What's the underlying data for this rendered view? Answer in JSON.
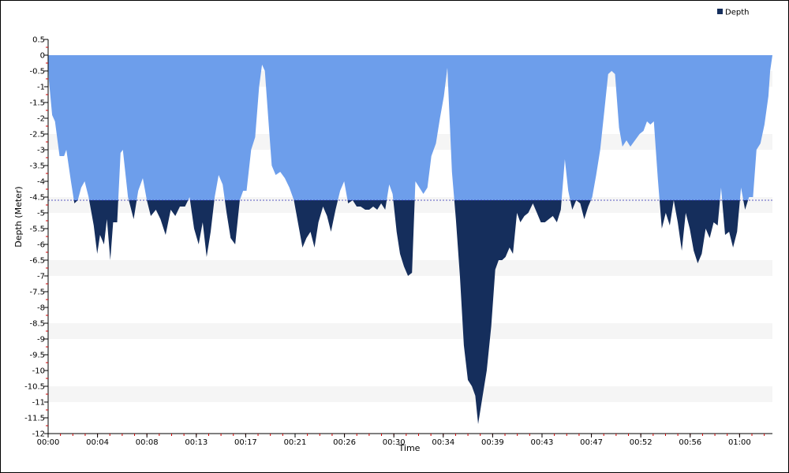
{
  "chart_data": {
    "type": "area",
    "xlabel": "Time",
    "ylabel": "Depth (Meter)",
    "legend": {
      "label": "Depth",
      "position": "top-right"
    },
    "ylim": [
      -12,
      0.5
    ],
    "xlim_minutes": [
      0,
      63.5
    ],
    "y_ticks": [
      0.5,
      0,
      -0.5,
      -1,
      -1.5,
      -2,
      -2.5,
      -3,
      -3.5,
      -4,
      -4.5,
      -5,
      -5.5,
      -6,
      -6.5,
      -7,
      -7.5,
      -8,
      -8.5,
      -9,
      -9.5,
      -10,
      -10.5,
      -11,
      -11.5,
      -12
    ],
    "y_tick_labels": [
      "0.5",
      "0",
      "-0.5",
      "-1",
      "-1.5",
      "-2",
      "-2.5",
      "-3",
      "-3.5",
      "-4",
      "-4.5",
      "-5",
      "-5.5",
      "-6",
      "-6.5",
      "-7",
      "-7.5",
      "-8",
      "-8.5",
      "-9",
      "-9.5",
      "-10",
      "-10.5",
      "-11",
      "-11.5",
      "-12"
    ],
    "x_ticks": [
      {
        "minute": 0,
        "label": "00:00"
      },
      {
        "minute": 4.33,
        "label": "00:04"
      },
      {
        "minute": 8.66,
        "label": "00:08"
      },
      {
        "minute": 12.99,
        "label": "00:13"
      },
      {
        "minute": 17.32,
        "label": "00:17"
      },
      {
        "minute": 21.65,
        "label": "00:21"
      },
      {
        "minute": 25.98,
        "label": "00:26"
      },
      {
        "minute": 30.31,
        "label": "00:30"
      },
      {
        "minute": 34.64,
        "label": "00:34"
      },
      {
        "minute": 38.97,
        "label": "00:39"
      },
      {
        "minute": 43.3,
        "label": "00:43"
      },
      {
        "minute": 47.63,
        "label": "00:47"
      },
      {
        "minute": 51.96,
        "label": "00:52"
      },
      {
        "minute": 56.29,
        "label": "00:56"
      },
      {
        "minute": 60.62,
        "label": "01:00"
      }
    ],
    "threshold_depth": -4.6,
    "colors": {
      "shallow_fill": "#6d9eeb",
      "deep_fill": "#152e5c",
      "threshold_line": "#2a2ab0",
      "band_alt": "#f5f5f5"
    },
    "series": [
      {
        "name": "Depth",
        "points": [
          [
            0,
            0
          ],
          [
            0.07,
            -0.8
          ],
          [
            0.35,
            -1.9
          ],
          [
            0.6,
            -2.1
          ],
          [
            1.0,
            -3.2
          ],
          [
            1.4,
            -3.2
          ],
          [
            1.6,
            -3.0
          ],
          [
            2.0,
            -4.0
          ],
          [
            2.3,
            -4.7
          ],
          [
            2.6,
            -4.6
          ],
          [
            2.9,
            -4.2
          ],
          [
            3.2,
            -4.0
          ],
          [
            3.55,
            -4.5
          ],
          [
            4.0,
            -5.4
          ],
          [
            4.3,
            -6.3
          ],
          [
            4.55,
            -5.7
          ],
          [
            4.9,
            -6.0
          ],
          [
            5.15,
            -5.2
          ],
          [
            5.45,
            -6.5
          ],
          [
            5.7,
            -5.3
          ],
          [
            6.05,
            -5.3
          ],
          [
            6.35,
            -3.1
          ],
          [
            6.55,
            -3.0
          ],
          [
            7.0,
            -4.5
          ],
          [
            7.5,
            -5.2
          ],
          [
            7.9,
            -4.3
          ],
          [
            8.3,
            -3.9
          ],
          [
            8.65,
            -4.6
          ],
          [
            9.0,
            -5.1
          ],
          [
            9.45,
            -4.9
          ],
          [
            9.85,
            -5.2
          ],
          [
            10.3,
            -5.7
          ],
          [
            10.75,
            -4.9
          ],
          [
            11.15,
            -5.1
          ],
          [
            11.55,
            -4.8
          ],
          [
            12.0,
            -4.8
          ],
          [
            12.4,
            -4.5
          ],
          [
            12.8,
            -5.5
          ],
          [
            13.2,
            -6.0
          ],
          [
            13.55,
            -5.3
          ],
          [
            13.9,
            -6.4
          ],
          [
            14.25,
            -5.6
          ],
          [
            14.6,
            -4.5
          ],
          [
            14.95,
            -3.8
          ],
          [
            15.3,
            -4.1
          ],
          [
            15.65,
            -5.0
          ],
          [
            16.0,
            -5.8
          ],
          [
            16.4,
            -6.0
          ],
          [
            16.8,
            -4.6
          ],
          [
            17.1,
            -4.3
          ],
          [
            17.4,
            -4.3
          ],
          [
            17.8,
            -3.0
          ],
          [
            18.15,
            -2.6
          ],
          [
            18.5,
            -1.0
          ],
          [
            18.75,
            -0.3
          ],
          [
            19.0,
            -0.5
          ],
          [
            19.3,
            -2.0
          ],
          [
            19.6,
            -3.5
          ],
          [
            19.95,
            -3.8
          ],
          [
            20.35,
            -3.7
          ],
          [
            20.75,
            -3.9
          ],
          [
            21.15,
            -4.2
          ],
          [
            21.55,
            -4.6
          ],
          [
            21.95,
            -5.4
          ],
          [
            22.3,
            -6.1
          ],
          [
            22.65,
            -5.8
          ],
          [
            23.0,
            -5.6
          ],
          [
            23.35,
            -6.1
          ],
          [
            23.7,
            -5.3
          ],
          [
            24.1,
            -4.8
          ],
          [
            24.45,
            -5.1
          ],
          [
            24.8,
            -5.6
          ],
          [
            25.2,
            -4.9
          ],
          [
            25.6,
            -4.3
          ],
          [
            25.95,
            -4.0
          ],
          [
            26.3,
            -4.7
          ],
          [
            26.7,
            -4.6
          ],
          [
            27.05,
            -4.8
          ],
          [
            27.4,
            -4.8
          ],
          [
            27.8,
            -4.9
          ],
          [
            28.15,
            -4.9
          ],
          [
            28.5,
            -4.8
          ],
          [
            28.85,
            -4.9
          ],
          [
            29.2,
            -4.7
          ],
          [
            29.55,
            -4.9
          ],
          [
            29.9,
            -4.1
          ],
          [
            30.2,
            -4.4
          ],
          [
            30.55,
            -5.6
          ],
          [
            30.85,
            -6.3
          ],
          [
            31.2,
            -6.7
          ],
          [
            31.55,
            -7.0
          ],
          [
            31.9,
            -6.9
          ],
          [
            32.2,
            -4.0
          ],
          [
            32.55,
            -4.2
          ],
          [
            32.9,
            -4.4
          ],
          [
            33.25,
            -4.2
          ],
          [
            33.6,
            -3.2
          ],
          [
            34.0,
            -2.8
          ],
          [
            34.35,
            -2.0
          ],
          [
            34.7,
            -1.3
          ],
          [
            35.0,
            -0.4
          ],
          [
            35.4,
            -3.7
          ],
          [
            35.75,
            -5.2
          ],
          [
            36.1,
            -7.0
          ],
          [
            36.45,
            -9.2
          ],
          [
            36.8,
            -10.3
          ],
          [
            37.15,
            -10.5
          ],
          [
            37.45,
            -10.8
          ],
          [
            37.7,
            -11.7
          ],
          [
            38.05,
            -10.9
          ],
          [
            38.45,
            -10.0
          ],
          [
            38.85,
            -8.6
          ],
          [
            39.2,
            -6.8
          ],
          [
            39.5,
            -6.5
          ],
          [
            39.8,
            -6.5
          ],
          [
            40.1,
            -6.4
          ],
          [
            40.45,
            -6.1
          ],
          [
            40.75,
            -6.3
          ],
          [
            41.1,
            -5.0
          ],
          [
            41.4,
            -5.3
          ],
          [
            41.75,
            -5.1
          ],
          [
            42.1,
            -5.0
          ],
          [
            42.5,
            -4.7
          ],
          [
            42.85,
            -5.0
          ],
          [
            43.2,
            -5.3
          ],
          [
            43.55,
            -5.3
          ],
          [
            43.9,
            -5.2
          ],
          [
            44.25,
            -5.1
          ],
          [
            44.6,
            -5.3
          ],
          [
            44.95,
            -4.9
          ],
          [
            45.3,
            -3.3
          ],
          [
            45.6,
            -4.3
          ],
          [
            45.95,
            -4.9
          ],
          [
            46.3,
            -4.6
          ],
          [
            46.65,
            -4.7
          ],
          [
            47.0,
            -5.2
          ],
          [
            47.35,
            -4.8
          ],
          [
            47.7,
            -4.5
          ],
          [
            48.05,
            -3.8
          ],
          [
            48.4,
            -3.0
          ],
          [
            48.75,
            -1.8
          ],
          [
            49.1,
            -0.6
          ],
          [
            49.4,
            -0.5
          ],
          [
            49.7,
            -0.6
          ],
          [
            50.05,
            -2.3
          ],
          [
            50.35,
            -2.9
          ],
          [
            50.7,
            -2.7
          ],
          [
            51.05,
            -2.9
          ],
          [
            51.45,
            -2.7
          ],
          [
            51.85,
            -2.5
          ],
          [
            52.2,
            -2.4
          ],
          [
            52.5,
            -2.1
          ],
          [
            52.8,
            -2.2
          ],
          [
            53.1,
            -2.1
          ],
          [
            53.45,
            -3.9
          ],
          [
            53.8,
            -5.5
          ],
          [
            54.15,
            -5.0
          ],
          [
            54.5,
            -5.4
          ],
          [
            54.85,
            -4.6
          ],
          [
            55.2,
            -5.3
          ],
          [
            55.55,
            -6.2
          ],
          [
            55.9,
            -5.0
          ],
          [
            56.25,
            -5.5
          ],
          [
            56.6,
            -6.2
          ],
          [
            56.95,
            -6.6
          ],
          [
            57.3,
            -6.3
          ],
          [
            57.65,
            -5.5
          ],
          [
            58.0,
            -5.8
          ],
          [
            58.35,
            -5.3
          ],
          [
            58.7,
            -5.4
          ],
          [
            59.0,
            -4.2
          ],
          [
            59.35,
            -5.7
          ],
          [
            59.7,
            -5.6
          ],
          [
            60.05,
            -6.1
          ],
          [
            60.4,
            -5.6
          ],
          [
            60.75,
            -4.2
          ],
          [
            61.1,
            -4.9
          ],
          [
            61.45,
            -4.5
          ],
          [
            61.8,
            -4.5
          ],
          [
            62.1,
            -3.0
          ],
          [
            62.45,
            -2.8
          ],
          [
            62.8,
            -2.2
          ],
          [
            63.15,
            -1.3
          ],
          [
            63.3,
            -0.5
          ],
          [
            63.5,
            0
          ]
        ]
      }
    ]
  }
}
